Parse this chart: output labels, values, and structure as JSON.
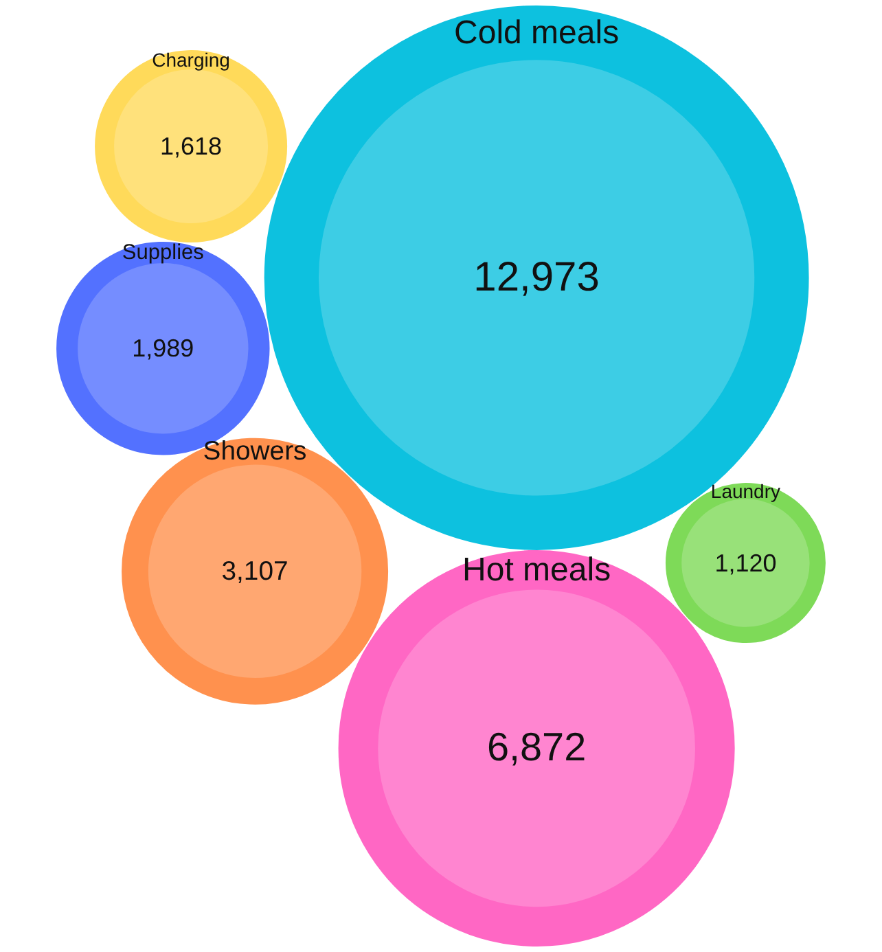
{
  "chart_data": {
    "type": "other",
    "categories": [
      "Charging",
      "Supplies",
      "Cold meals",
      "Hot meals",
      "Showers",
      "Laundry"
    ],
    "values": [
      1618,
      1989,
      12973,
      6872,
      3107,
      1120
    ],
    "colors": [
      "#ffe17b",
      "#758dff",
      "#3dcde5",
      "#ff85d0",
      "#ffa771",
      "#98e179"
    ],
    "value_labels": [
      "1,618",
      "1,989",
      "12,973",
      "6,872",
      "3,107",
      "1,120"
    ]
  }
}
